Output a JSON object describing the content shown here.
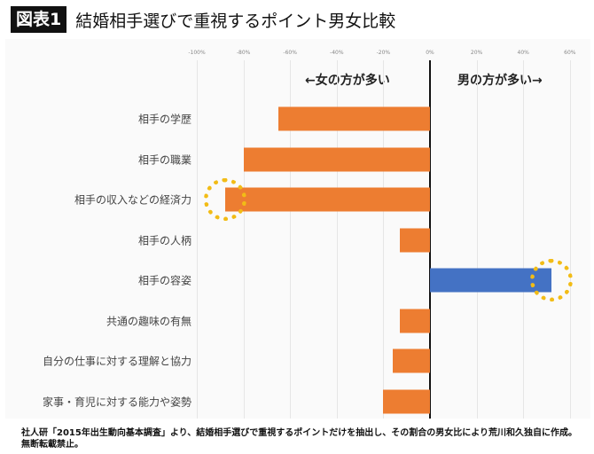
{
  "header": {
    "badge": "図表1",
    "title": "結婚相手選びで重視するポイント男女比較"
  },
  "chart_data": {
    "type": "bar",
    "orientation": "horizontal",
    "title": "結婚相手選びで重視するポイント男女比較",
    "xlabel": "",
    "ylabel": "",
    "xlim": [
      -100,
      60
    ],
    "x_ticks": [
      "-100%",
      "-80%",
      "-60%",
      "-40%",
      "-20%",
      "0%",
      "20%",
      "40%",
      "60%"
    ],
    "grid": true,
    "annotations": [
      "←女の方が多い",
      "男の方が多い→"
    ],
    "categories": [
      "相手の学歴",
      "相手の職業",
      "相手の収入などの経済力",
      "相手の人柄",
      "相手の容姿",
      "共通の趣味の有無",
      "自分の仕事に対する理解と協力",
      "家事・育児に対する能力や姿勢"
    ],
    "values": [
      -65,
      -80,
      -88,
      -13,
      52,
      -13,
      -16,
      -20
    ],
    "colors": {
      "female": "#ed7d31",
      "male": "#4472c4",
      "highlight": "#f2bc16"
    },
    "highlighted": [
      "相手の収入などの経済力",
      "相手の容姿"
    ]
  },
  "direction": {
    "female_more": "←女の方が多い",
    "male_more": "男の方が多い→"
  },
  "footer": {
    "note": "社人研「2015年出生動向基本調査」より、結婚相手選びで重視するポイントだけを抽出し、その割合の男女比により荒川和久独自に作成。無断転載禁止。"
  }
}
